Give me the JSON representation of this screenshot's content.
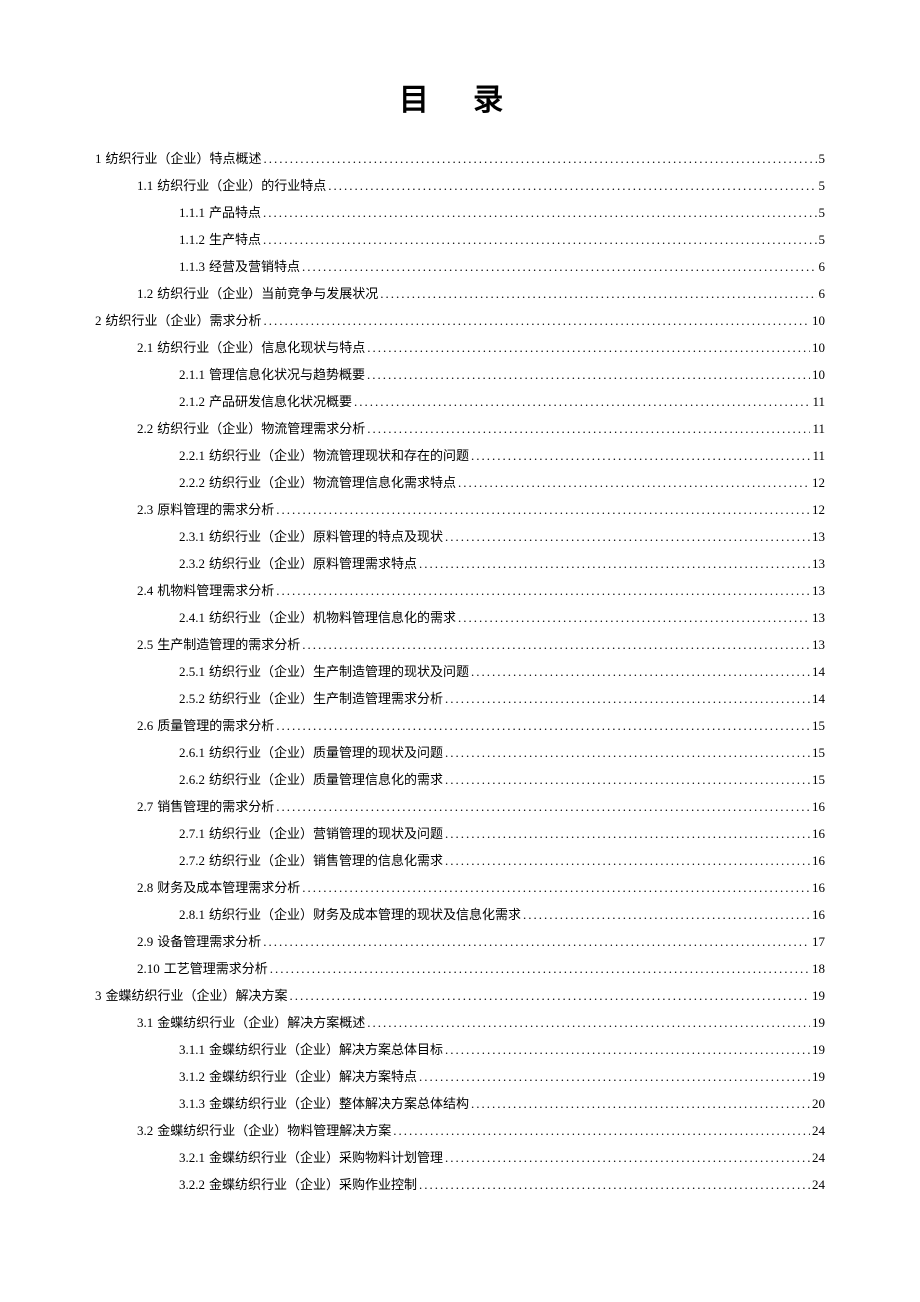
{
  "title": "目 录",
  "entries": [
    {
      "level": 1,
      "number": "1",
      "text": "纺织行业（企业）特点概述",
      "page": "5"
    },
    {
      "level": 2,
      "number": "1.1",
      "text": "纺织行业（企业）的行业特点",
      "page": "5"
    },
    {
      "level": 3,
      "number": "1.1.1",
      "text": "产品特点",
      "page": "5"
    },
    {
      "level": 3,
      "number": "1.1.2",
      "text": "生产特点",
      "page": "5"
    },
    {
      "level": 3,
      "number": "1.1.3",
      "text": "经营及营销特点",
      "page": "6"
    },
    {
      "level": 2,
      "number": "1.2",
      "text": "纺织行业（企业）当前竞争与发展状况",
      "page": "6"
    },
    {
      "level": 1,
      "number": "2",
      "text": "纺织行业（企业）需求分析",
      "page": "10"
    },
    {
      "level": 2,
      "number": "2.1",
      "text": "纺织行业（企业）信息化现状与特点",
      "page": "10"
    },
    {
      "level": 3,
      "number": "2.1.1",
      "text": "管理信息化状况与趋势概要",
      "page": "10"
    },
    {
      "level": 3,
      "number": "2.1.2",
      "text": "产品研发信息化状况概要",
      "page": "11"
    },
    {
      "level": 2,
      "number": "2.2",
      "text": "纺织行业（企业）物流管理需求分析",
      "page": "11"
    },
    {
      "level": 3,
      "number": "2.2.1",
      "text": "纺织行业（企业）物流管理现状和存在的问题",
      "page": "11"
    },
    {
      "level": 3,
      "number": "2.2.2",
      "text": "纺织行业（企业）物流管理信息化需求特点",
      "page": "12"
    },
    {
      "level": 2,
      "number": "2.3",
      "text": "原料管理的需求分析",
      "page": "12"
    },
    {
      "level": 3,
      "number": "2.3.1",
      "text": "纺织行业（企业）原料管理的特点及现状",
      "page": "13"
    },
    {
      "level": 3,
      "number": "2.3.2",
      "text": "纺织行业（企业）原料管理需求特点",
      "page": "13"
    },
    {
      "level": 2,
      "number": "2.4",
      "text": " 机物料管理需求分析",
      "page": "13"
    },
    {
      "level": 3,
      "number": "2.4.1",
      "text": "纺织行业（企业）机物料管理信息化的需求",
      "page": "13"
    },
    {
      "level": 2,
      "number": "2.5",
      "text": " 生产制造管理的需求分析",
      "page": "13"
    },
    {
      "level": 3,
      "number": "2.5.1",
      "text": "纺织行业（企业）生产制造管理的现状及问题",
      "page": "14"
    },
    {
      "level": 3,
      "number": "2.5.2",
      "text": "纺织行业（企业）生产制造管理需求分析",
      "page": "14"
    },
    {
      "level": 2,
      "number": "2.6",
      "text": "质量管理的需求分析",
      "page": "15"
    },
    {
      "level": 3,
      "number": "2.6.1",
      "text": "纺织行业（企业）质量管理的现状及问题",
      "page": "15"
    },
    {
      "level": 3,
      "number": "2.6.2",
      "text": "纺织行业（企业）质量管理信息化的需求",
      "page": "15"
    },
    {
      "level": 2,
      "number": "2.7",
      "text": " 销售管理的需求分析",
      "page": "16"
    },
    {
      "level": 3,
      "number": "2.7.1",
      "text": "纺织行业（企业）营销管理的现状及问题",
      "page": "16"
    },
    {
      "level": 3,
      "number": "2.7.2",
      "text": "纺织行业（企业）销售管理的信息化需求",
      "page": "16"
    },
    {
      "level": 2,
      "number": "2.8",
      "text": " 财务及成本管理需求分析",
      "page": "16"
    },
    {
      "level": 3,
      "number": "2.8.1",
      "text": "纺织行业（企业）财务及成本管理的现状及信息化需求",
      "page": "16"
    },
    {
      "level": 2,
      "number": "2.9",
      "text": " 设备管理需求分析",
      "page": "17"
    },
    {
      "level": 2,
      "number": "2.10",
      "text": "工艺管理需求分析",
      "page": "18"
    },
    {
      "level": 1,
      "number": "3",
      "text": " 金蝶纺织行业（企业）解决方案",
      "page": "19"
    },
    {
      "level": 2,
      "number": "3.1",
      "text": " 金蝶纺织行业（企业）解决方案概述",
      "page": "19"
    },
    {
      "level": 3,
      "number": "3.1.1",
      "text": " 金蝶纺织行业（企业）解决方案总体目标",
      "page": "19"
    },
    {
      "level": 3,
      "number": "3.1.2",
      "text": " 金蝶纺织行业（企业）解决方案特点",
      "page": "19"
    },
    {
      "level": 3,
      "number": "3.1.3",
      "text": "金蝶纺织行业（企业）整体解决方案总体结构",
      "page": "20"
    },
    {
      "level": 2,
      "number": "3.2",
      "text": " 金蝶纺织行业（企业）物料管理解决方案",
      "page": "24"
    },
    {
      "level": 3,
      "number": "3.2.1",
      "text": " 金蝶纺织行业（企业）采购物料计划管理",
      "page": "24"
    },
    {
      "level": 3,
      "number": "3.2.2",
      "text": " 金蝶纺织行业（企业）采购作业控制",
      "page": "24"
    }
  ]
}
